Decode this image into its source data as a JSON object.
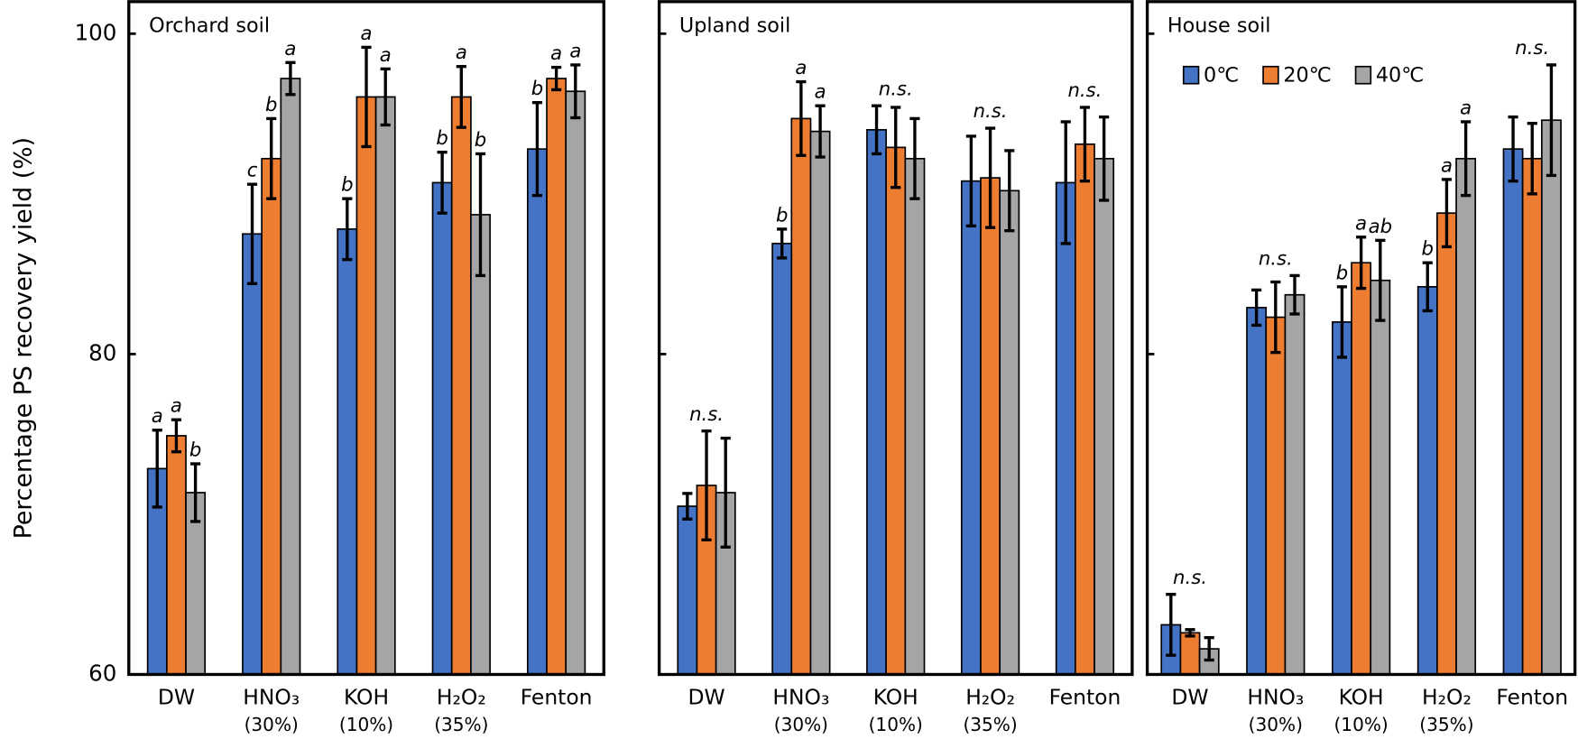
{
  "chart_data": [
    {
      "type": "bar",
      "title": "Orchard soil",
      "ylabel": "Percentage PS recovery yield (%)",
      "categories": [
        "DW",
        "HNO₃",
        "KOH",
        "H₂O₂",
        "Fenton"
      ],
      "category_notes": [
        null,
        "(30%)",
        "(10%)",
        "(35%)",
        null
      ],
      "ylim": [
        60,
        102
      ],
      "yticks": [
        60,
        80,
        100
      ],
      "show_tick_labels": true,
      "series": [
        {
          "color": "#4472c4",
          "values": [
            72.85,
            87.5,
            87.8,
            90.7,
            92.8
          ],
          "errors": [
            2.4,
            3.1,
            1.9,
            1.9,
            2.9
          ],
          "letters": [
            "a",
            "c",
            "b",
            "b",
            "b"
          ]
        },
        {
          "color": "#ed7d31",
          "values": [
            74.9,
            92.2,
            96.05,
            96.05,
            97.2
          ],
          "errors": [
            1.0,
            2.5,
            3.1,
            1.9,
            0.7
          ],
          "letters": [
            "a",
            "b",
            "a",
            "a",
            "a"
          ]
        },
        {
          "color": "#a5a5a5",
          "values": [
            71.35,
            97.2,
            96.05,
            88.7,
            96.4
          ],
          "errors": [
            1.8,
            1.0,
            1.75,
            3.8,
            1.65
          ],
          "letters": [
            "b",
            "a",
            "a",
            "b",
            "a"
          ]
        }
      ],
      "group_labels": [
        null,
        null,
        null,
        null,
        null
      ]
    },
    {
      "type": "bar",
      "title": "Upland soil",
      "categories": [
        "DW",
        "HNO₃",
        "KOH",
        "H₂O₂",
        "Fenton"
      ],
      "category_notes": [
        null,
        "(30%)",
        "(10%)",
        "(35%)",
        null
      ],
      "ylim": [
        60,
        102
      ],
      "yticks": [
        60,
        80,
        100
      ],
      "show_tick_labels": false,
      "series": [
        {
          "color": "#4472c4",
          "values": [
            70.5,
            86.9,
            94.0,
            90.8,
            90.7
          ],
          "errors": [
            0.8,
            0.9,
            1.5,
            2.8,
            3.8
          ],
          "letters": [
            null,
            "b",
            null,
            null,
            null
          ]
        },
        {
          "color": "#ed7d31",
          "values": [
            71.8,
            94.7,
            92.9,
            91.0,
            93.1
          ],
          "errors": [
            3.4,
            2.3,
            2.5,
            3.1,
            2.3
          ],
          "letters": [
            null,
            "a",
            null,
            null,
            null
          ]
        },
        {
          "color": "#a5a5a5",
          "values": [
            71.35,
            93.9,
            92.2,
            90.2,
            92.2
          ],
          "errors": [
            3.4,
            1.6,
            2.5,
            2.5,
            2.6
          ],
          "letters": [
            null,
            "a",
            null,
            null,
            null
          ]
        }
      ],
      "group_labels": [
        "n.s.",
        null,
        "n.s.",
        "n.s.",
        "n.s."
      ]
    },
    {
      "type": "bar",
      "title": "House soil",
      "legend": "top-left",
      "categories": [
        "DW",
        "HNO₃",
        "KOH",
        "H₂O₂",
        "Fenton"
      ],
      "category_notes": [
        null,
        "(30%)",
        "(10%)",
        "(35%)",
        null
      ],
      "ylim": [
        60,
        102
      ],
      "yticks": [
        60,
        80,
        100
      ],
      "show_tick_labels": false,
      "series": [
        {
          "name": "0℃",
          "color": "#4472c4",
          "values": [
            63.1,
            82.9,
            82.0,
            84.2,
            92.8
          ],
          "errors": [
            1.9,
            1.1,
            2.2,
            1.5,
            2.0
          ],
          "letters": [
            null,
            null,
            "b",
            "b",
            null
          ]
        },
        {
          "name": "20℃",
          "color": "#ed7d31",
          "values": [
            62.6,
            82.3,
            85.7,
            88.8,
            92.2
          ],
          "errors": [
            0.2,
            2.2,
            1.6,
            2.1,
            2.2
          ],
          "letters": [
            null,
            null,
            "a",
            "a",
            null
          ]
        },
        {
          "name": "40℃",
          "color": "#a5a5a5",
          "values": [
            61.6,
            83.7,
            84.6,
            92.2,
            94.6
          ],
          "errors": [
            0.7,
            1.2,
            2.5,
            2.3,
            3.45
          ],
          "letters": [
            null,
            null,
            "ab",
            "a",
            null
          ]
        }
      ],
      "group_labels": [
        "n.s.",
        "n.s.",
        null,
        null,
        "n.s."
      ]
    }
  ]
}
